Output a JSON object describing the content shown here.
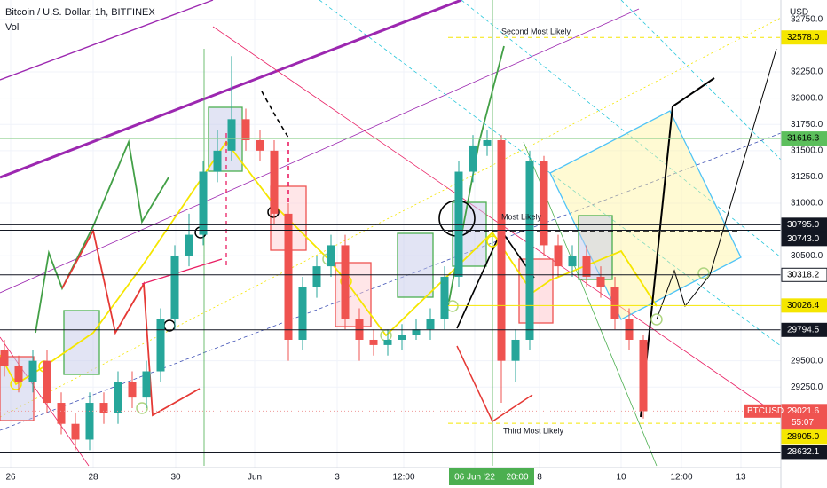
{
  "header": {
    "title": "Bitcoin / U.S. Dollar, 1h, BITFINEX",
    "indicator": "Vol",
    "currency": "USD"
  },
  "chart_data": {
    "type": "candlestick",
    "candles": [
      [
        29600,
        29700,
        29350,
        29450
      ],
      [
        29450,
        29550,
        29200,
        29300
      ],
      [
        29300,
        29600,
        29200,
        29500
      ],
      [
        29500,
        29600,
        29000,
        29100
      ],
      [
        29100,
        29200,
        28800,
        28900
      ],
      [
        28900,
        29000,
        28650,
        28750
      ],
      [
        28750,
        29200,
        28650,
        29100
      ],
      [
        29100,
        29200,
        28900,
        29000
      ],
      [
        29000,
        29400,
        28900,
        29300
      ],
      [
        29300,
        29400,
        29050,
        29150
      ],
      [
        29150,
        29500,
        29050,
        29400
      ],
      [
        29400,
        30000,
        29300,
        29900
      ],
      [
        29900,
        30600,
        29800,
        30500
      ],
      [
        30500,
        30900,
        30400,
        30700
      ],
      [
        30700,
        31400,
        30600,
        31300
      ],
      [
        31300,
        31700,
        31200,
        31500
      ],
      [
        31500,
        32400,
        31400,
        31800
      ],
      [
        31800,
        31900,
        31500,
        31600
      ],
      [
        31600,
        31700,
        31400,
        31500
      ],
      [
        31500,
        31600,
        30800,
        30900
      ],
      [
        30900,
        31000,
        29500,
        29700
      ],
      [
        29700,
        30300,
        29600,
        30200
      ],
      [
        30200,
        30500,
        30100,
        30400
      ],
      [
        30400,
        30700,
        30300,
        30600
      ],
      [
        30600,
        30700,
        29800,
        29900
      ],
      [
        29900,
        30000,
        29500,
        29700
      ],
      [
        29700,
        29800,
        29550,
        29650
      ],
      [
        29650,
        29800,
        29550,
        29700
      ],
      [
        29700,
        29850,
        29600,
        29750
      ],
      [
        29750,
        29900,
        29700,
        29800
      ],
      [
        29800,
        30000,
        29700,
        29900
      ],
      [
        29900,
        30400,
        29800,
        30300
      ],
      [
        30300,
        31400,
        30200,
        31300
      ],
      [
        31300,
        31650,
        31200,
        31550
      ],
      [
        31550,
        31700,
        31450,
        31600
      ],
      [
        31600,
        31650,
        29100,
        29500
      ],
      [
        29500,
        29800,
        29300,
        29700
      ],
      [
        29700,
        31500,
        29600,
        31400
      ],
      [
        31400,
        31450,
        30500,
        30600
      ],
      [
        30600,
        30700,
        30300,
        30400
      ],
      [
        30400,
        30600,
        30300,
        30500
      ],
      [
        30500,
        30600,
        30200,
        30300
      ],
      [
        30300,
        30400,
        30100,
        30200
      ],
      [
        30200,
        30300,
        29800,
        29900
      ],
      [
        29900,
        30000,
        29600,
        29700
      ],
      [
        29700,
        29750,
        28950,
        29020
      ]
    ],
    "ylim": [
      28450,
      32850
    ],
    "yticks": [
      {
        "value": 32750,
        "label": "32750.0"
      },
      {
        "value": 32250,
        "label": "32250.0"
      },
      {
        "value": 32000,
        "label": "32000.0"
      },
      {
        "value": 31750,
        "label": "31750.0"
      },
      {
        "value": 31500,
        "label": "31500.0"
      },
      {
        "value": 31250,
        "label": "31250.0"
      },
      {
        "value": 31000,
        "label": "31000.0"
      },
      {
        "value": 30500,
        "label": "30500.0"
      },
      {
        "value": 29500,
        "label": "29500.0"
      },
      {
        "value": 29250,
        "label": "29250.0"
      }
    ],
    "price_labels": [
      {
        "value": 32578,
        "label": "32578.0",
        "bg": "#f5e600",
        "fg": "#000000",
        "line": "#f5e600"
      },
      {
        "value": 31616.3,
        "label": "31616.3",
        "bg": "#5cbf5c",
        "fg": "#000000",
        "line": "#8fd18f"
      },
      {
        "value": 30795,
        "label": "30795.0",
        "bg": "#131722",
        "fg": "#ffffff",
        "line": "#131722"
      },
      {
        "value": 30743,
        "label": "30743.0",
        "bg": "#131722",
        "fg": "#ffffff",
        "line": "#131722"
      },
      {
        "value": 30318.2,
        "label": "30318.2",
        "bg": "#ffffff",
        "fg": "#000000",
        "line": "#131722"
      },
      {
        "value": 30026.4,
        "label": "30026.4",
        "bg": "#f5e600",
        "fg": "#000000",
        "line": "#f5e600"
      },
      {
        "value": 29794.5,
        "label": "29794.5",
        "bg": "#131722",
        "fg": "#ffffff",
        "line": "#131722"
      },
      {
        "value": 29021.6,
        "label": "29021.6",
        "bg": "#ef5350",
        "fg": "#ffffff",
        "line": "#ef9a9a"
      },
      {
        "value": 28905,
        "label": "28905.0",
        "bg": "#f5e600",
        "fg": "#000000",
        "line": "#f5e600"
      },
      {
        "value": 28632.1,
        "label": "28632.1",
        "bg": "#131722",
        "fg": "#ffffff",
        "line": "#131722"
      }
    ],
    "symbol": "BTCUSD",
    "countdown": "55:07",
    "x_labels": [
      "26",
      "28",
      "30",
      "Jun",
      "3",
      "12:00",
      "8",
      "10",
      "12:00",
      "13"
    ],
    "cursor_labels": [
      "06 Jun '22",
      "20:00"
    ],
    "annotations": [
      "Second Most Likely",
      "Most Likely",
      "Third Most Likely"
    ]
  }
}
